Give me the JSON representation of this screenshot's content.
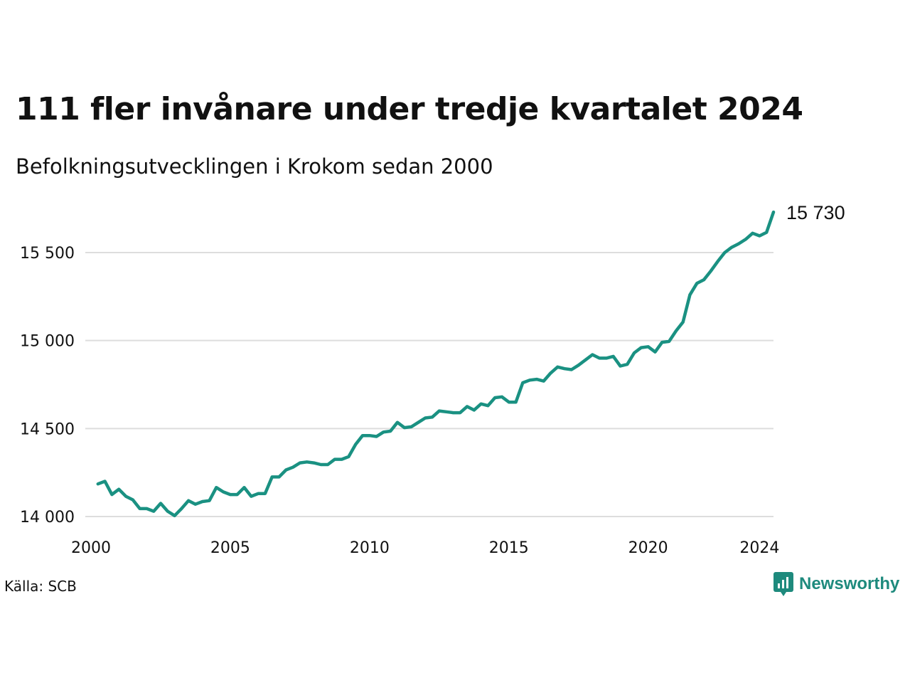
{
  "title": "111 fler invånare under tredje kvartalet 2024",
  "subtitle": "Befolkningsutvecklingen i Krokom sedan 2000",
  "source": "Källa: SCB",
  "brand": "Newsworthy",
  "colors": {
    "line": "#1a9182",
    "grid": "#dddddd",
    "brand": "#1e8a7d"
  },
  "chart_data": {
    "type": "line",
    "title": "111 fler invånare under tredje kvartalet 2024",
    "xlabel": "",
    "ylabel": "",
    "xlim": [
      2000,
      2024.5
    ],
    "ylim": [
      14000,
      15500
    ],
    "x_ticks": [
      2000,
      2005,
      2010,
      2015,
      2020,
      2024
    ],
    "x_tick_labels": [
      "2000",
      "2005",
      "2010",
      "2015",
      "2020",
      "2024"
    ],
    "y_ticks": [
      14000,
      14500,
      15000,
      15500
    ],
    "y_tick_labels": [
      "14 000",
      "14 500",
      "15 000",
      "15 500"
    ],
    "grid": "horizontal",
    "end_label": "15 730",
    "series": [
      {
        "x": [
          2000.25,
          2000.5,
          2000.75,
          2001,
          2001.25,
          2001.5,
          2001.75,
          2002,
          2002.25,
          2002.5,
          2002.75,
          2003,
          2003.25,
          2003.5,
          2003.75,
          2004,
          2004.25,
          2004.5,
          2004.75,
          2005,
          2005.25,
          2005.5,
          2005.75,
          2006,
          2006.25,
          2006.5,
          2006.75,
          2007,
          2007.25,
          2007.5,
          2007.75,
          2008,
          2008.25,
          2008.5,
          2008.75,
          2009,
          2009.25,
          2009.5,
          2009.75,
          2010,
          2010.25,
          2010.5,
          2010.75,
          2011,
          2011.25,
          2011.5,
          2011.75,
          2012,
          2012.25,
          2012.5,
          2012.75,
          2013,
          2013.25,
          2013.5,
          2013.75,
          2014,
          2014.25,
          2014.5,
          2014.75,
          2015,
          2015.25,
          2015.5,
          2015.75,
          2016,
          2016.25,
          2016.5,
          2016.75,
          2017,
          2017.25,
          2017.5,
          2017.75,
          2018,
          2018.25,
          2018.5,
          2018.75,
          2019,
          2019.25,
          2019.5,
          2019.75,
          2020,
          2020.25,
          2020.5,
          2020.75,
          2021,
          2021.25,
          2021.5,
          2021.75,
          2022,
          2022.25,
          2022.5,
          2022.75,
          2023,
          2023.25,
          2023.5,
          2023.75,
          2024,
          2024.25,
          2024.5
        ],
        "y": [
          14185,
          14200,
          14125,
          14155,
          14115,
          14095,
          14045,
          14045,
          14030,
          14075,
          14030,
          14005,
          14045,
          14090,
          14070,
          14085,
          14090,
          14165,
          14140,
          14125,
          14125,
          14165,
          14115,
          14130,
          14130,
          14225,
          14225,
          14265,
          14280,
          14305,
          14310,
          14305,
          14295,
          14295,
          14325,
          14325,
          14340,
          14410,
          14460,
          14460,
          14455,
          14480,
          14485,
          14535,
          14505,
          14510,
          14535,
          14560,
          14565,
          14600,
          14595,
          14590,
          14590,
          14625,
          14605,
          14640,
          14630,
          14675,
          14680,
          14650,
          14650,
          14760,
          14775,
          14780,
          14770,
          14815,
          14850,
          14840,
          14835,
          14860,
          14890,
          14920,
          14900,
          14900,
          14910,
          14855,
          14865,
          14930,
          14960,
          14965,
          14935,
          14990,
          14995,
          15055,
          15105,
          15260,
          15325,
          15345,
          15395,
          15450,
          15500,
          15530,
          15550,
          15575,
          15610,
          15595,
          15615,
          15730
        ]
      }
    ]
  }
}
